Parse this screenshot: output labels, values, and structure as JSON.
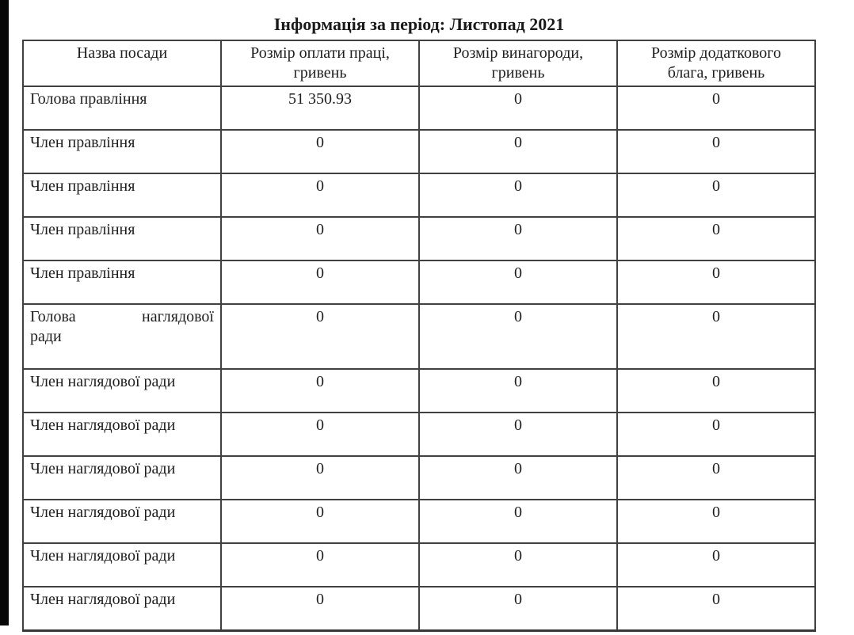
{
  "page": {
    "title": "Інформація за період: Листопад 2021"
  },
  "table": {
    "columns": [
      "Назва посади",
      "Розмір оплати праці,\nгривень",
      "Розмір винагороди,\nгривень",
      "Розмір додаткового\nблага, гривень"
    ],
    "rows": [
      {
        "name": "Голова правління",
        "salary": "51 350.93",
        "reward": "0",
        "benefit": "0"
      },
      {
        "name": "Член правління",
        "salary": "0",
        "reward": "0",
        "benefit": "0"
      },
      {
        "name": "Член правління",
        "salary": "0",
        "reward": "0",
        "benefit": "0"
      },
      {
        "name": "Член правління",
        "salary": "0",
        "reward": "0",
        "benefit": "0"
      },
      {
        "name": "Член правління",
        "salary": "0",
        "reward": "0",
        "benefit": "0"
      },
      {
        "name": "Голова наглядової\nради",
        "salary": "0",
        "reward": "0",
        "benefit": "0"
      },
      {
        "name": "Член наглядової ради",
        "salary": "0",
        "reward": "0",
        "benefit": "0"
      },
      {
        "name": "Член наглядової ради",
        "salary": "0",
        "reward": "0",
        "benefit": "0"
      },
      {
        "name": "Член наглядової ради",
        "salary": "0",
        "reward": "0",
        "benefit": "0"
      },
      {
        "name": "Член наглядової ради",
        "salary": "0",
        "reward": "0",
        "benefit": "0"
      },
      {
        "name": "Член наглядової ради",
        "salary": "0",
        "reward": "0",
        "benefit": "0"
      },
      {
        "name": "Член наглядової ради",
        "salary": "0",
        "reward": "0",
        "benefit": "0"
      }
    ]
  },
  "colors": {
    "text": "#1e1e1e",
    "border": "#404040",
    "left_bar": "#070707",
    "background": "#ffffff"
  }
}
